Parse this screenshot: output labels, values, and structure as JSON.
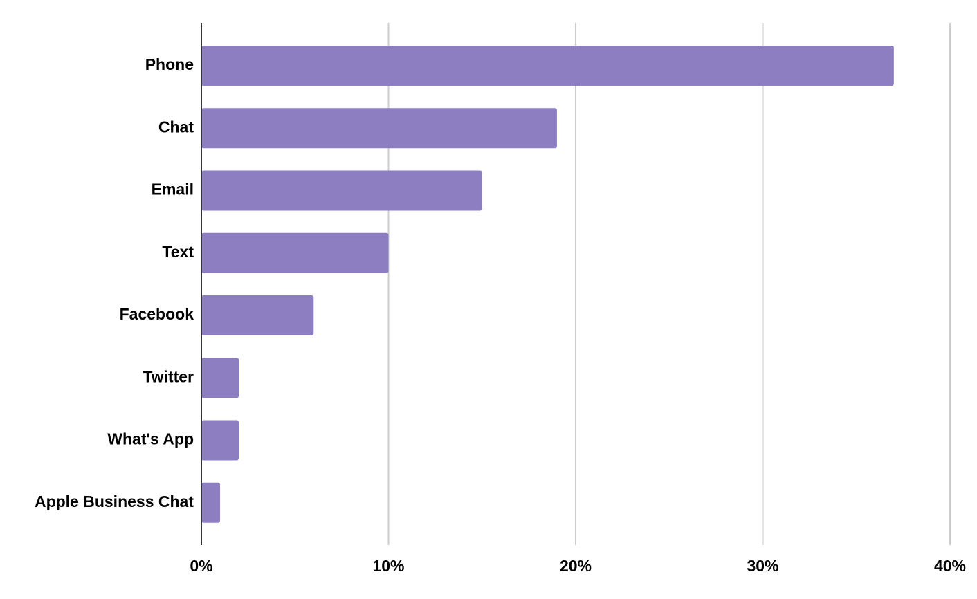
{
  "chart_data": {
    "type": "bar",
    "orientation": "horizontal",
    "title": "",
    "xlabel": "",
    "ylabel": "",
    "categories": [
      "Phone",
      "Chat",
      "Email",
      "Text",
      "Facebook",
      "Twitter",
      "What's App",
      "Apple Business Chat"
    ],
    "values": [
      37,
      19,
      15,
      10,
      6,
      2,
      2,
      1
    ],
    "value_unit": "%",
    "xlim": [
      0,
      40
    ],
    "x_ticks": [
      0,
      10,
      20,
      30,
      40
    ],
    "x_tick_labels": [
      "0%",
      "10%",
      "20%",
      "30%",
      "40%"
    ],
    "grid": "vertical",
    "legend": "none",
    "colors": {
      "bar": "#8c7ec0",
      "grid": "#cccccc",
      "axis": "#333333",
      "text": "#000000"
    }
  }
}
